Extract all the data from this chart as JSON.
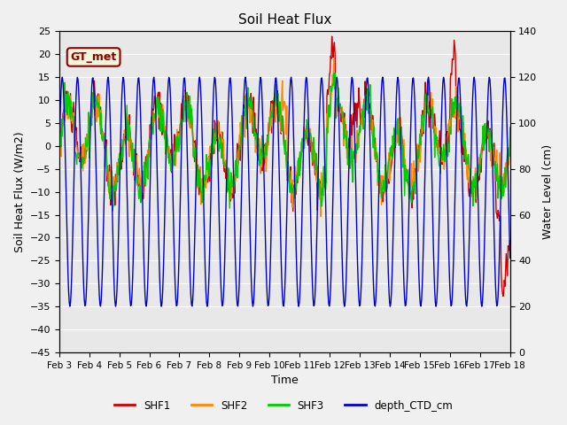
{
  "title": "Soil Heat Flux",
  "ylabel_left": "Soil Heat Flux (W/m2)",
  "ylabel_right": "Water Level (cm)",
  "xlabel": "Time",
  "ylim_left": [
    -45,
    25
  ],
  "ylim_right": [
    0,
    140
  ],
  "yticks_left": [
    -45,
    -40,
    -35,
    -30,
    -25,
    -20,
    -15,
    -10,
    -5,
    0,
    5,
    10,
    15,
    20,
    25
  ],
  "yticks_right": [
    0,
    20,
    40,
    60,
    80,
    100,
    120,
    140
  ],
  "background_color": "#f0f0f0",
  "plot_bg_color": "#e8e8e8",
  "grid_color": "#ffffff",
  "annotation_text": "GT_met",
  "annotation_bg": "#f5f5dc",
  "annotation_border": "#8B0000",
  "line_colors": {
    "SHF1": "#cc0000",
    "SHF2": "#ff8800",
    "SHF3": "#00cc00",
    "depth_CTD_cm": "#0000cc"
  },
  "legend_labels": [
    "SHF1",
    "SHF2",
    "SHF3",
    "depth_CTD_cm"
  ],
  "xtick_labels": [
    "Feb 3",
    "Feb 4",
    "Feb 5",
    "Feb 6",
    "Feb 7",
    "Feb 8",
    "Feb 9",
    "Feb 10",
    "Feb 11",
    "Feb 12",
    "Feb 13",
    "Feb 14",
    "Feb 15",
    "Feb 16",
    "Feb 17",
    "Feb 18"
  ],
  "n_days": 15,
  "n_ticks": 16
}
